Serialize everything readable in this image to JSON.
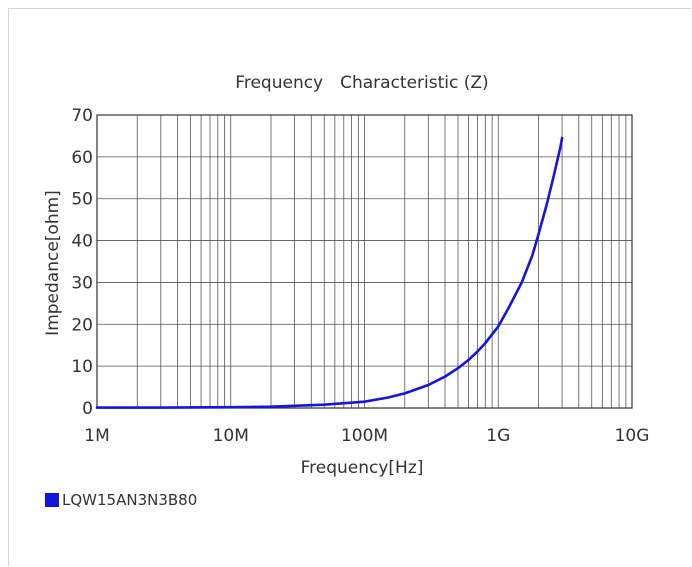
{
  "chart_data": {
    "type": "line",
    "title": "Frequency　Characteristic (Z)",
    "xlabel": "Frequency[Hz]",
    "ylabel": "Impedance[ohm]",
    "x_scale": "log",
    "xlim": [
      1000000,
      10000000000
    ],
    "ylim": [
      0,
      70
    ],
    "x_tick_values": [
      1000000,
      10000000,
      100000000,
      1000000000,
      10000000000
    ],
    "x_tick_labels": [
      "1M",
      "10M",
      "100M",
      "1G",
      "10G"
    ],
    "y_ticks": [
      0,
      10,
      20,
      30,
      40,
      50,
      60,
      70
    ],
    "grid": true,
    "legend_position": "bottom-left",
    "series": [
      {
        "name": "LQW15AN3N3B80",
        "color": "#1515e0",
        "x": [
          1000000,
          3000000,
          10000000,
          20000000,
          50000000,
          100000000,
          150000000,
          200000000,
          300000000,
          400000000,
          500000000,
          600000000,
          700000000,
          800000000,
          1000000000,
          1200000000,
          1500000000,
          1800000000,
          2000000000,
          2300000000,
          2600000000,
          2900000000,
          3000000000
        ],
        "y": [
          0.1,
          0.1,
          0.2,
          0.3,
          0.8,
          1.5,
          2.5,
          3.5,
          5.5,
          7.5,
          9.5,
          11.5,
          13.5,
          15.5,
          19.5,
          24,
          30,
          36.5,
          41.5,
          48.5,
          55.5,
          62,
          64.5
        ]
      }
    ]
  }
}
